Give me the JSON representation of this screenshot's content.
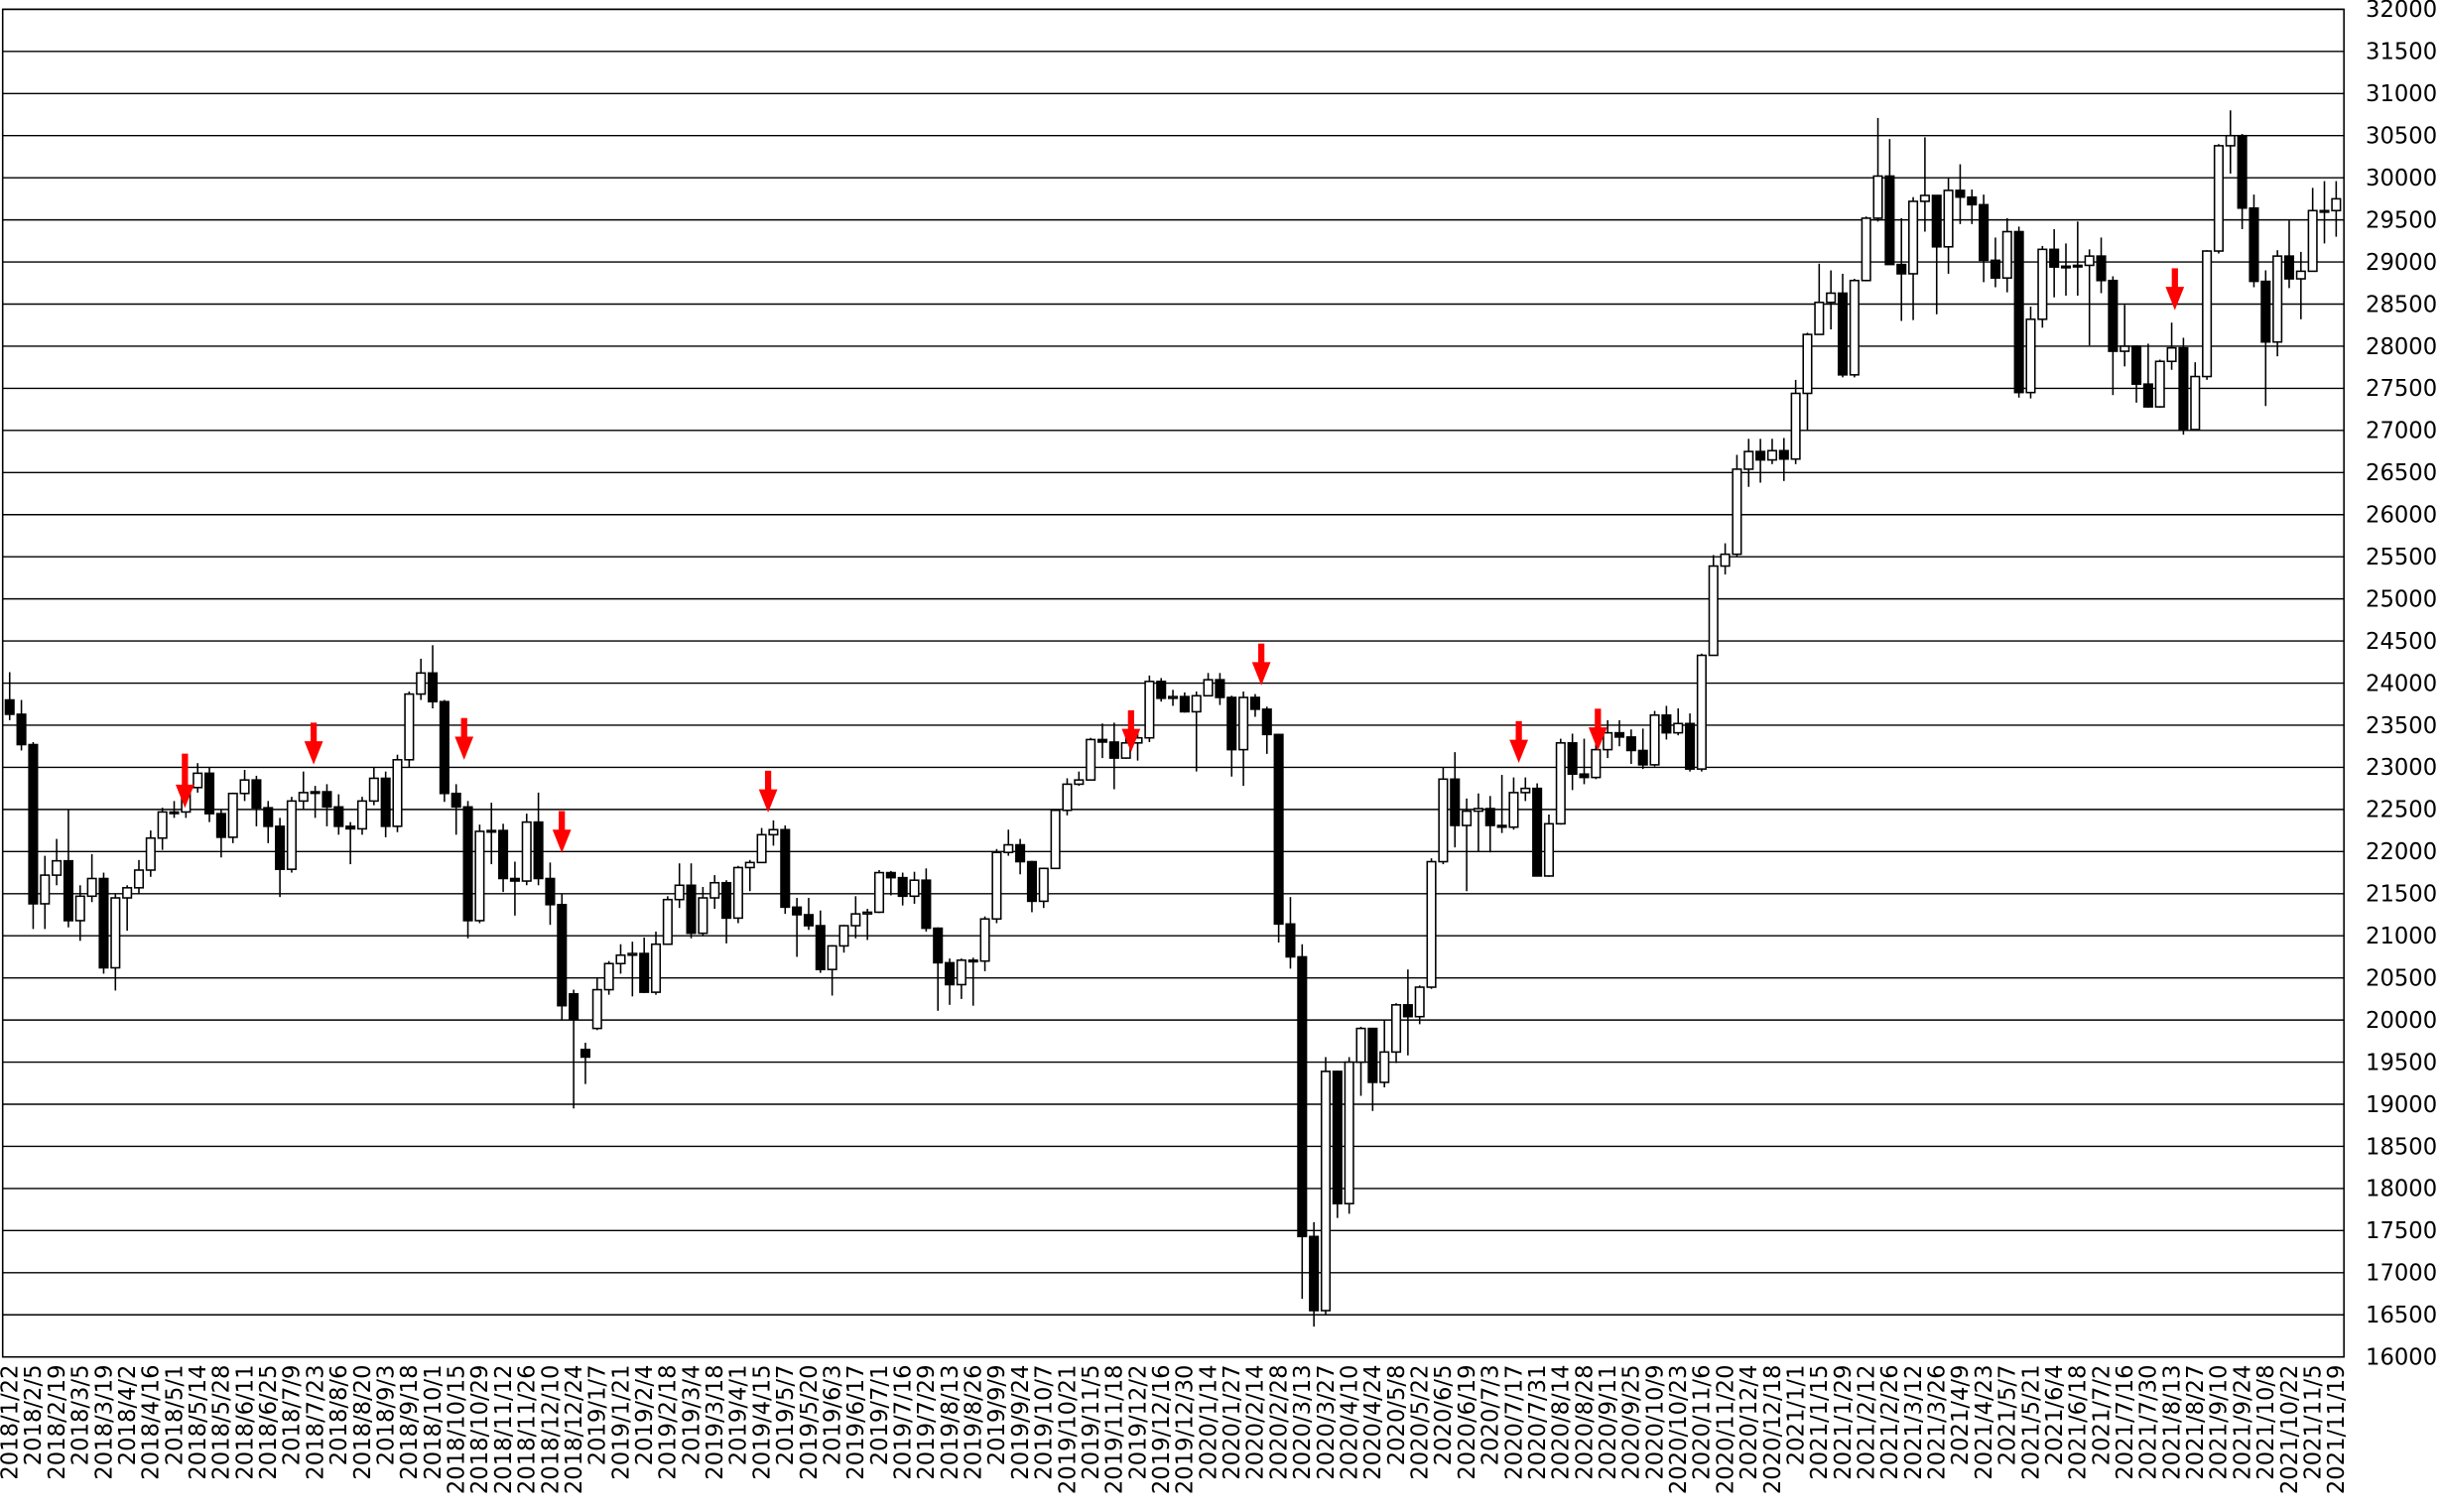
{
  "chart_data": {
    "type": "candlestick",
    "categories": [
      "2018/1/22",
      null,
      "2018/2/5",
      null,
      "2018/2/19",
      null,
      "2018/3/5",
      null,
      "2018/3/19",
      null,
      "2018/4/2",
      null,
      "2018/4/16",
      null,
      "2018/5/1",
      null,
      "2018/5/14",
      null,
      "2018/5/28",
      null,
      "2018/6/11",
      null,
      "2018/6/25",
      null,
      "2018/7/9",
      null,
      "2018/7/23",
      null,
      "2018/8/6",
      null,
      "2018/8/20",
      null,
      "2018/9/3",
      null,
      "2018/9/18",
      null,
      "2018/10/1",
      null,
      "2018/10/15",
      null,
      "2018/10/29",
      null,
      "2018/11/12",
      null,
      "2018/11/26",
      null,
      "2018/12/10",
      null,
      "2018/12/24",
      null,
      "2019/1/7",
      null,
      "2019/1/21",
      null,
      "2019/2/4",
      null,
      "2019/2/18",
      null,
      "2019/3/4",
      null,
      "2019/3/18",
      null,
      "2019/4/1",
      null,
      "2019/4/15",
      null,
      "2019/5/7",
      null,
      "2019/5/20",
      null,
      "2019/6/3",
      null,
      "2019/6/17",
      null,
      "2019/7/1",
      null,
      "2019/7/16",
      null,
      "2019/7/29",
      null,
      "2019/8/13",
      null,
      "2019/8/26",
      null,
      "2019/9/9",
      null,
      "2019/9/24",
      null,
      "2019/10/7",
      null,
      "2019/10/21",
      null,
      "2019/11/5",
      null,
      "2019/11/18",
      null,
      "2019/12/2",
      null,
      "2019/12/16",
      null,
      "2019/12/30",
      null,
      "2020/1/14",
      null,
      "2020/1/27",
      null,
      "2020/2/14",
      null,
      "2020/2/28",
      null,
      "2020/3/13",
      null,
      "2020/3/27",
      null,
      "2020/4/10",
      null,
      "2020/4/24",
      null,
      "2020/5/8",
      null,
      "2020/5/22",
      null,
      "2020/6/5",
      null,
      "2020/6/19",
      null,
      "2020/7/3",
      null,
      "2020/7/17",
      null,
      "2020/7/31",
      null,
      "2020/8/14",
      null,
      "2020/8/28",
      null,
      "2020/9/11",
      null,
      "2020/9/25",
      null,
      "2020/10/9",
      null,
      "2020/10/23",
      null,
      "2020/11/6",
      null,
      "2020/11/20",
      null,
      "2020/12/4",
      null,
      "2020/12/18",
      null,
      "2021/1/1",
      null,
      "2021/1/15",
      null,
      "2021/1/29",
      null,
      "2021/2/12",
      null,
      "2021/2/26",
      null,
      "2021/3/12",
      null,
      "2021/3/26",
      null,
      "2021/4/9",
      null,
      "2021/4/23",
      null,
      "2021/5/7",
      null,
      "2021/5/21",
      null,
      "2021/6/4",
      null,
      "2021/6/18",
      null,
      "2021/7/2",
      null,
      "2021/7/16",
      null,
      "2021/7/30",
      null,
      "2021/8/13",
      null,
      "2021/8/27",
      null,
      "2021/9/10",
      null,
      "2021/9/24",
      null,
      "2021/10/8",
      null,
      "2021/10/22",
      null,
      "2021/11/5",
      null,
      "2021/11/19"
    ],
    "open": [
      23800,
      23630,
      23270,
      21380,
      21720,
      21890,
      21180,
      21470,
      21680,
      20620,
      21450,
      21570,
      21780,
      22160,
      22470,
      22470,
      22760,
      22930,
      22450,
      22170,
      22690,
      22850,
      22520,
      22300,
      21790,
      22600,
      22700,
      22710,
      22530,
      22300,
      22270,
      22600,
      22870,
      22300,
      23090,
      23870,
      24120,
      23780,
      22690,
      22530,
      21180,
      22240,
      22250,
      21680,
      21650,
      22350,
      21680,
      21370,
      20310,
      19650,
      19900,
      20360,
      20670,
      20770,
      20790,
      20330,
      20900,
      21430,
      21600,
      21030,
      21450,
      21630,
      21210,
      21810,
      21870,
      22200,
      22260,
      21340,
      21250,
      21120,
      20600,
      20880,
      21120,
      21260,
      21280,
      21750,
      21690,
      21470,
      21660,
      21090,
      20680,
      20420,
      20710,
      20700,
      21200,
      21990,
      22080,
      21880,
      21410,
      21800,
      22490,
      22800,
      22850,
      23330,
      23300,
      23110,
      23290,
      23350,
      24020,
      23820,
      23840,
      23660,
      23850,
      24040,
      23830,
      23210,
      23830,
      23690,
      23390,
      21140,
      20750,
      17430,
      16550,
      19390,
      17820,
      19500,
      19900,
      19260,
      19620,
      20180,
      20040,
      20390,
      21880,
      22860,
      22310,
      22480,
      22510,
      22310,
      22290,
      22700,
      22750,
      21710,
      22330,
      23290,
      22920,
      22880,
      23210,
      23410,
      23360,
      23200,
      23030,
      23620,
      23410,
      23520,
      22980,
      24330,
      25390,
      25530,
      26540,
      26750,
      26650,
      26760,
      26660,
      27440,
      28140,
      28520,
      28630,
      27660,
      28780,
      29520,
      30020,
      28970,
      28860,
      29720,
      29790,
      29180,
      29850,
      29770,
      29680,
      29020,
      28810,
      29360,
      27450,
      28320,
      29150,
      28940,
      28950,
      28960,
      29070,
      28780,
      27940,
      28000,
      27550,
      27280,
      27820,
      27980,
      27010,
      27640,
      29130,
      30380,
      30500,
      29640,
      28770,
      28050,
      29070,
      28800,
      28890,
      29610,
      29610
    ],
    "high": [
      24130,
      23800,
      23300,
      21950,
      22150,
      22500,
      21600,
      21970,
      21750,
      21500,
      21600,
      21900,
      22250,
      22520,
      22600,
      22800,
      23050,
      23000,
      22500,
      22700,
      22970,
      22900,
      22600,
      22400,
      22650,
      22950,
      22780,
      22800,
      22680,
      22350,
      22650,
      23000,
      22950,
      23150,
      23900,
      24290,
      24450,
      23800,
      22800,
      22600,
      22320,
      22580,
      22330,
      21880,
      22450,
      22700,
      21870,
      21500,
      20360,
      19730,
      20500,
      20700,
      20900,
      20930,
      20980,
      21050,
      21470,
      21860,
      21860,
      21580,
      21720,
      21660,
      21830,
      21900,
      22280,
      22370,
      22310,
      21450,
      21450,
      21300,
      20890,
      21130,
      21470,
      21320,
      21780,
      21770,
      21750,
      21760,
      21800,
      21100,
      20730,
      20730,
      20740,
      21230,
      22030,
      22260,
      22150,
      21890,
      21810,
      22500,
      22870,
      22950,
      23350,
      23520,
      23530,
      23450,
      23430,
      24090,
      24060,
      23920,
      23890,
      23900,
      24120,
      24120,
      23850,
      23900,
      23870,
      23720,
      23400,
      21460,
      20900,
      17600,
      19560,
      19400,
      19560,
      19920,
      19900,
      20000,
      20200,
      20600,
      20410,
      21920,
      23000,
      23180,
      22630,
      22690,
      22660,
      22910,
      22880,
      22880,
      22810,
      22440,
      23340,
      23400,
      23340,
      23560,
      23560,
      23560,
      23450,
      23460,
      23670,
      23730,
      23700,
      23640,
      24350,
      25520,
      25660,
      26710,
      26900,
      26900,
      26900,
      26910,
      27600,
      28160,
      28980,
      28900,
      28860,
      28800,
      29540,
      30710,
      30460,
      29520,
      29770,
      30480,
      29790,
      30000,
      30160,
      29860,
      29800,
      29290,
      29520,
      29420,
      28470,
      29190,
      29390,
      29220,
      29480,
      29150,
      29290,
      28830,
      28490,
      28010,
      28030,
      27840,
      28280,
      28100,
      27810,
      29140,
      30400,
      30800,
      30520,
      29800,
      28900,
      29140,
      29490,
      29120,
      29880,
      29960,
      29960
    ],
    "low": [
      23560,
      23200,
      21080,
      21080,
      21600,
      21100,
      20940,
      21400,
      20550,
      20350,
      21060,
      21500,
      21700,
      22020,
      22400,
      22400,
      22700,
      22350,
      21930,
      22100,
      22600,
      22300,
      22100,
      21460,
      21750,
      22500,
      22400,
      22300,
      22200,
      21850,
      22200,
      22550,
      22170,
      22230,
      23000,
      23800,
      23700,
      22590,
      22200,
      20970,
      21150,
      21850,
      21520,
      21240,
      21600,
      21600,
      21130,
      20000,
      18950,
      19240,
      19880,
      20300,
      20550,
      20280,
      20320,
      20300,
      20900,
      21330,
      20970,
      21000,
      21320,
      20910,
      21150,
      21530,
      21870,
      22070,
      21260,
      20750,
      21070,
      20560,
      20290,
      20800,
      20970,
      20950,
      21270,
      21480,
      21360,
      21380,
      21050,
      20110,
      20180,
      20250,
      20170,
      20580,
      21150,
      21950,
      21730,
      21280,
      21330,
      21800,
      22430,
      22780,
      22850,
      23110,
      22740,
      23100,
      23080,
      23300,
      23780,
      23730,
      23650,
      22950,
      23850,
      23740,
      22890,
      22780,
      23600,
      23160,
      20920,
      20610,
      16690,
      16360,
      16500,
      17650,
      17700,
      19100,
      18920,
      19200,
      19490,
      19580,
      19950,
      20370,
      21850,
      22050,
      21530,
      22000,
      21990,
      22220,
      22260,
      22600,
      21710,
      21700,
      22320,
      22730,
      22800,
      22860,
      23110,
      23250,
      23040,
      22980,
      23010,
      23330,
      23380,
      22950,
      22950,
      24330,
      25290,
      25500,
      26330,
      26380,
      26600,
      26400,
      26600,
      27000,
      28140,
      28200,
      27630,
      27630,
      28770,
      29480,
      28970,
      28300,
      28310,
      29360,
      28380,
      28860,
      29450,
      29450,
      28760,
      28700,
      28640,
      27390,
      27380,
      28220,
      28580,
      28600,
      28600,
      28010,
      28630,
      27420,
      27760,
      27330,
      27270,
      27270,
      27720,
      26950,
      27000,
      27600,
      29100,
      30050,
      29390,
      28700,
      27290,
      27880,
      28690,
      28320,
      28890,
      29220,
      29300
    ],
    "close": [
      23630,
      23270,
      21380,
      21720,
      21890,
      21180,
      21470,
      21680,
      20620,
      21450,
      21570,
      21780,
      22160,
      22470,
      22470,
      22760,
      22930,
      22450,
      22170,
      22690,
      22850,
      22520,
      22300,
      21790,
      22600,
      22700,
      22710,
      22530,
      22300,
      22270,
      22600,
      22870,
      22300,
      23090,
      23870,
      24120,
      23780,
      22690,
      22530,
      21180,
      22240,
      22250,
      21680,
      21650,
      22350,
      21680,
      21370,
      20170,
      20010,
      19560,
      20360,
      20670,
      20770,
      20790,
      20330,
      20900,
      21430,
      21600,
      21030,
      21450,
      21630,
      21210,
      21810,
      21870,
      22200,
      22260,
      21340,
      21250,
      21120,
      20600,
      20880,
      21120,
      21260,
      21280,
      21750,
      21690,
      21470,
      21660,
      21090,
      20680,
      20420,
      20710,
      20700,
      21200,
      21990,
      22080,
      21880,
      21410,
      21800,
      22490,
      22800,
      22850,
      23330,
      23300,
      23110,
      23290,
      23350,
      24020,
      23820,
      23840,
      23660,
      23850,
      24040,
      23830,
      23210,
      23830,
      23690,
      23390,
      21140,
      20750,
      17430,
      16550,
      19390,
      17820,
      19500,
      19900,
      19260,
      19620,
      20180,
      20040,
      20390,
      21880,
      22860,
      22310,
      22480,
      22510,
      22310,
      22290,
      22700,
      22750,
      21710,
      22330,
      23290,
      22920,
      22880,
      23210,
      23410,
      23360,
      23200,
      23030,
      23620,
      23410,
      23520,
      22980,
      24330,
      25390,
      25530,
      26540,
      26750,
      26650,
      26760,
      26660,
      27440,
      28140,
      28520,
      28630,
      27660,
      28780,
      29520,
      30020,
      28970,
      28860,
      29720,
      29790,
      29180,
      29850,
      29770,
      29680,
      29020,
      28810,
      29360,
      27450,
      28320,
      29150,
      28940,
      28950,
      28960,
      29070,
      28780,
      27940,
      28000,
      27550,
      27280,
      27820,
      27980,
      27010,
      27640,
      29130,
      30380,
      30500,
      29640,
      28770,
      28050,
      29070,
      28800,
      28890,
      29610,
      29610,
      29750
    ],
    "ylim": [
      16000,
      32000
    ],
    "yticks": [
      16000,
      16500,
      17000,
      17500,
      18000,
      18500,
      19000,
      19500,
      20000,
      20500,
      21000,
      21500,
      22000,
      22500,
      23000,
      23500,
      24000,
      24500,
      25000,
      25500,
      26000,
      26500,
      27000,
      27500,
      28000,
      28500,
      29000,
      29500,
      30000,
      30500,
      31000,
      31500,
      32000
    ],
    "grid": true,
    "up_color": "#ffffff",
    "down_color": "#000000"
  }
}
